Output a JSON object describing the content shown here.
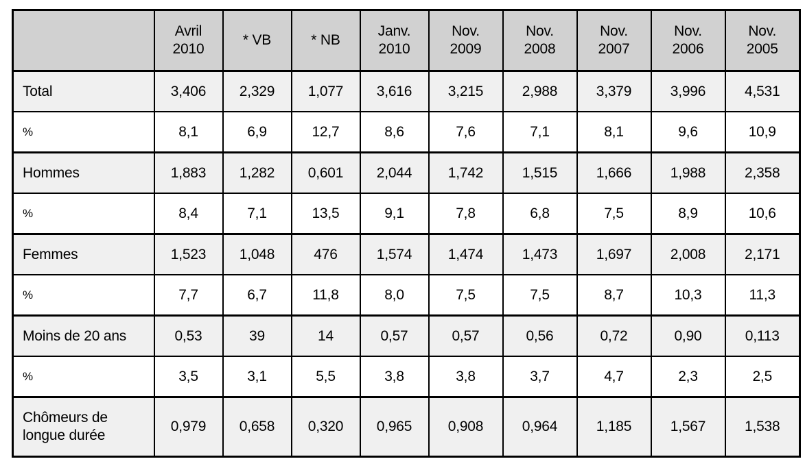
{
  "table": {
    "columns": [
      "",
      "Avril\n2010",
      "* VB",
      "* NB",
      "Janv.\n2010",
      "Nov.\n2009",
      "Nov.\n2008",
      "Nov.\n2007",
      "Nov.\n2006",
      "Nov.\n2005"
    ],
    "rows": [
      {
        "label": "Total",
        "type": "category",
        "values": [
          "3,406",
          "2,329",
          "1,077",
          "3,616",
          "3,215",
          "2,988",
          "3,379",
          "3,996",
          "4,531"
        ]
      },
      {
        "label": "%",
        "type": "percent",
        "values": [
          "8,1",
          "6,9",
          "12,7",
          "8,6",
          "7,6",
          "7,1",
          "8,1",
          "9,6",
          "10,9"
        ]
      },
      {
        "label": "Hommes",
        "type": "category",
        "values": [
          "1,883",
          "1,282",
          "0,601",
          "2,044",
          "1,742",
          "1,515",
          "1,666",
          "1,988",
          "2,358"
        ]
      },
      {
        "label": "%",
        "type": "percent",
        "values": [
          "8,4",
          "7,1",
          "13,5",
          "9,1",
          "7,8",
          "6,8",
          "7,5",
          "8,9",
          "10,6"
        ]
      },
      {
        "label": "Femmes",
        "type": "category",
        "values": [
          "1,523",
          "1,048",
          "476",
          "1,574",
          "1,474",
          "1,473",
          "1,697",
          "2,008",
          "2,171"
        ]
      },
      {
        "label": "%",
        "type": "percent",
        "values": [
          "7,7",
          "6,7",
          "11,8",
          "8,0",
          "7,5",
          "7,5",
          "8,7",
          "10,3",
          "11,3"
        ]
      },
      {
        "label": "Moins de 20 ans",
        "type": "category",
        "values": [
          "0,53",
          "39",
          "14",
          "0,57",
          "0,57",
          "0,56",
          "0,72",
          "0,90",
          "0,113"
        ]
      },
      {
        "label": "%",
        "type": "percent",
        "values": [
          "3,5",
          "3,1",
          "5,5",
          "3,8",
          "3,8",
          "3,7",
          "4,7",
          "2,3",
          "2,5"
        ]
      },
      {
        "label": "Chômeurs de longue durée",
        "type": "category",
        "values": [
          "0,979",
          "0,658",
          "0,320",
          "0,965",
          "0,908",
          "0,964",
          "1,185",
          "1,567",
          "1,538"
        ]
      }
    ],
    "colors": {
      "header_bg": "#d1d1d1",
      "category_row_bg": "#f0f0f0",
      "percent_row_bg": "#ffffff",
      "border": "#000000",
      "text": "#000000"
    }
  }
}
